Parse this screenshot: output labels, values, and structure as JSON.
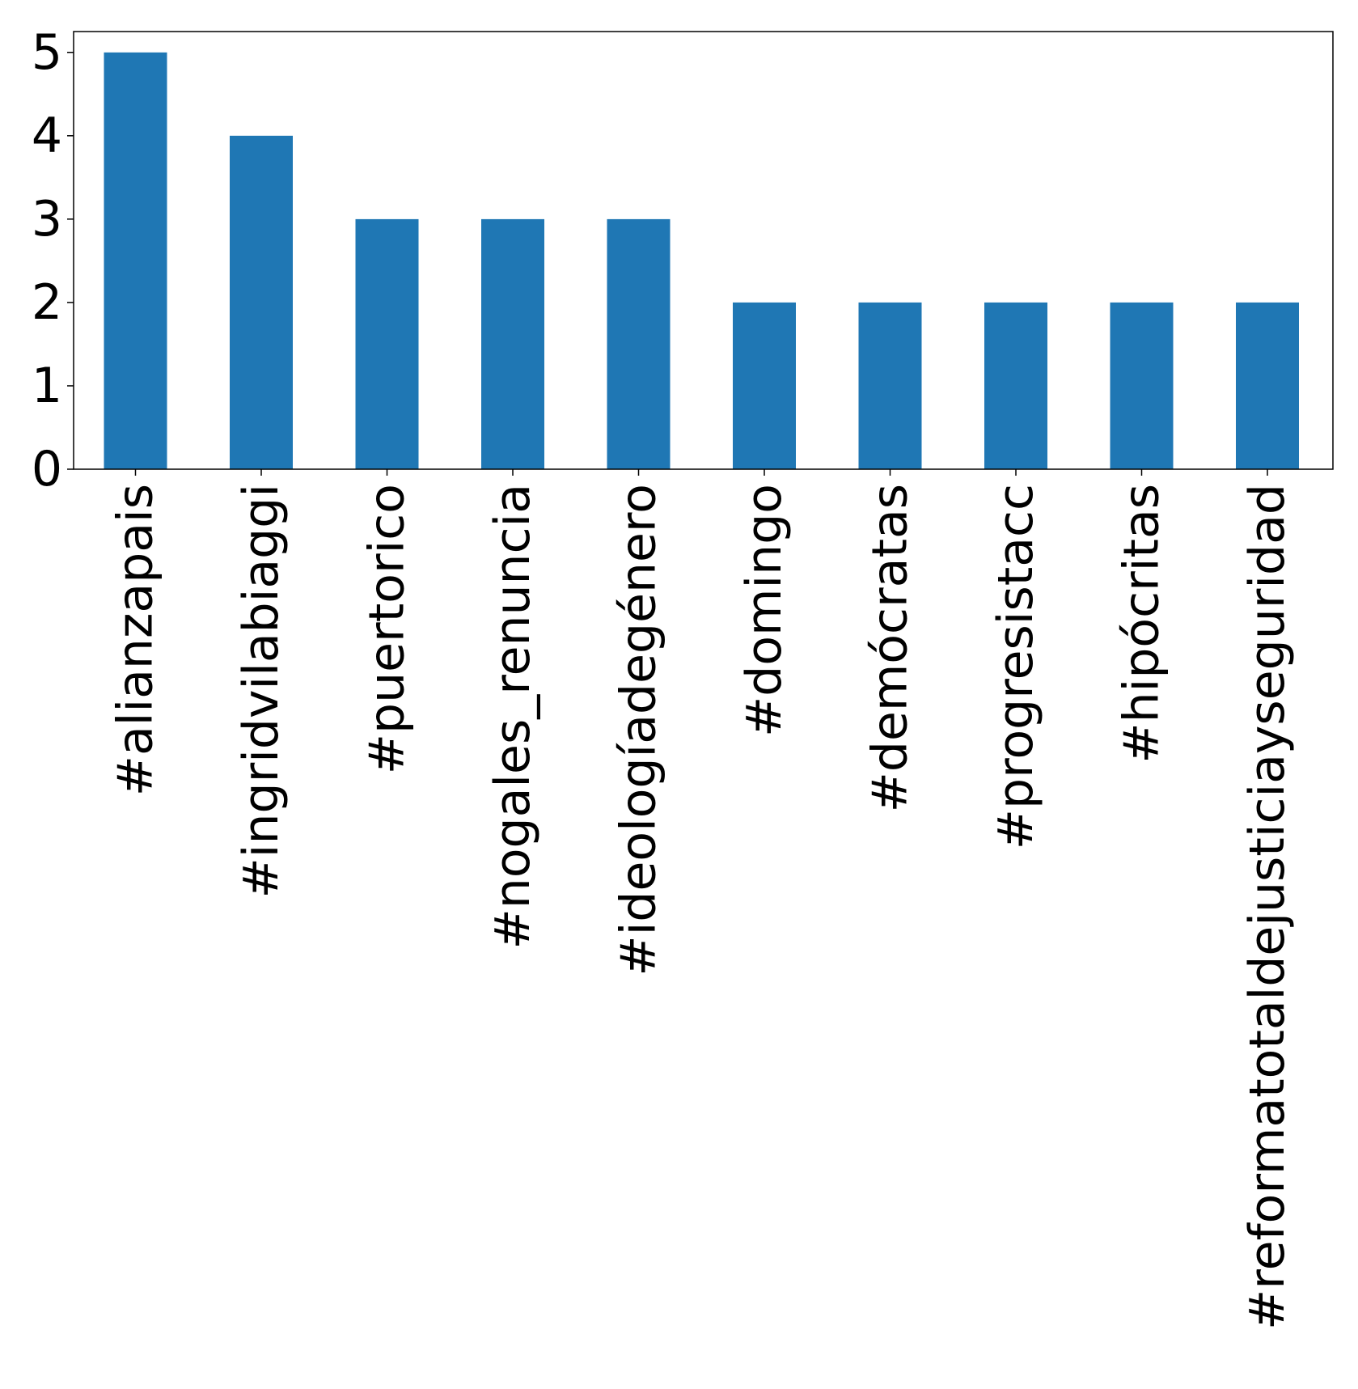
{
  "chart_data": {
    "type": "bar",
    "categories": [
      "#alianzapais",
      "#ingridvilabiaggi",
      "#puertorico",
      "#nogales_renuncia",
      "#ideologíadegénero",
      "#domingo",
      "#demócratas",
      "#progresistacc",
      "#hipócritas",
      "#reformatotaldejusticiayseguridad"
    ],
    "values": [
      5,
      4,
      3,
      3,
      3,
      2,
      2,
      2,
      2,
      2
    ],
    "title": "",
    "xlabel": "",
    "ylabel": "",
    "ylim": [
      0,
      5.25
    ],
    "yticks": [
      "0",
      "1",
      "2",
      "3",
      "4",
      "5"
    ],
    "grid": false,
    "bar_color": "#1f77b4"
  }
}
